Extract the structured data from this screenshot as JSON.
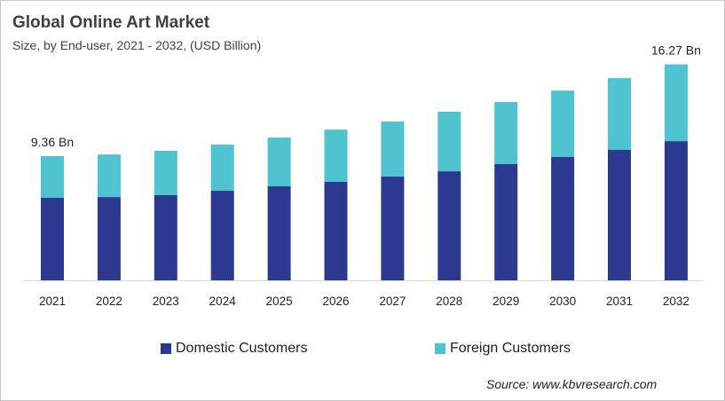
{
  "chart_data": {
    "type": "bar",
    "stacked": true,
    "title": "Global Online Art Market",
    "subtitle": "Size, by End-user, 2021 - 2032, (USD Billion)",
    "xlabel": "",
    "ylabel": "",
    "ylim": [
      0,
      16.5
    ],
    "grid": false,
    "categories": [
      "2021",
      "2022",
      "2023",
      "2024",
      "2025",
      "2026",
      "2027",
      "2028",
      "2029",
      "2030",
      "2031",
      "2032"
    ],
    "series": [
      {
        "name": "Domestic Customers",
        "color": "#2b3990",
        "values": [
          6.22,
          6.28,
          6.42,
          6.75,
          7.09,
          7.42,
          7.82,
          8.22,
          8.76,
          9.29,
          9.83,
          10.49
        ]
      },
      {
        "name": "Foreign Customers",
        "color": "#4fc3cf",
        "values": [
          3.14,
          3.21,
          3.34,
          3.48,
          3.67,
          3.94,
          4.15,
          4.48,
          4.68,
          5.01,
          5.41,
          5.78
        ]
      }
    ],
    "annotations": [
      {
        "category": "2021",
        "text": "9.36 Bn"
      },
      {
        "category": "2032",
        "text": "16.27 Bn"
      }
    ],
    "legend_position": "bottom",
    "source": "Source: www.kbvresearch.com"
  }
}
